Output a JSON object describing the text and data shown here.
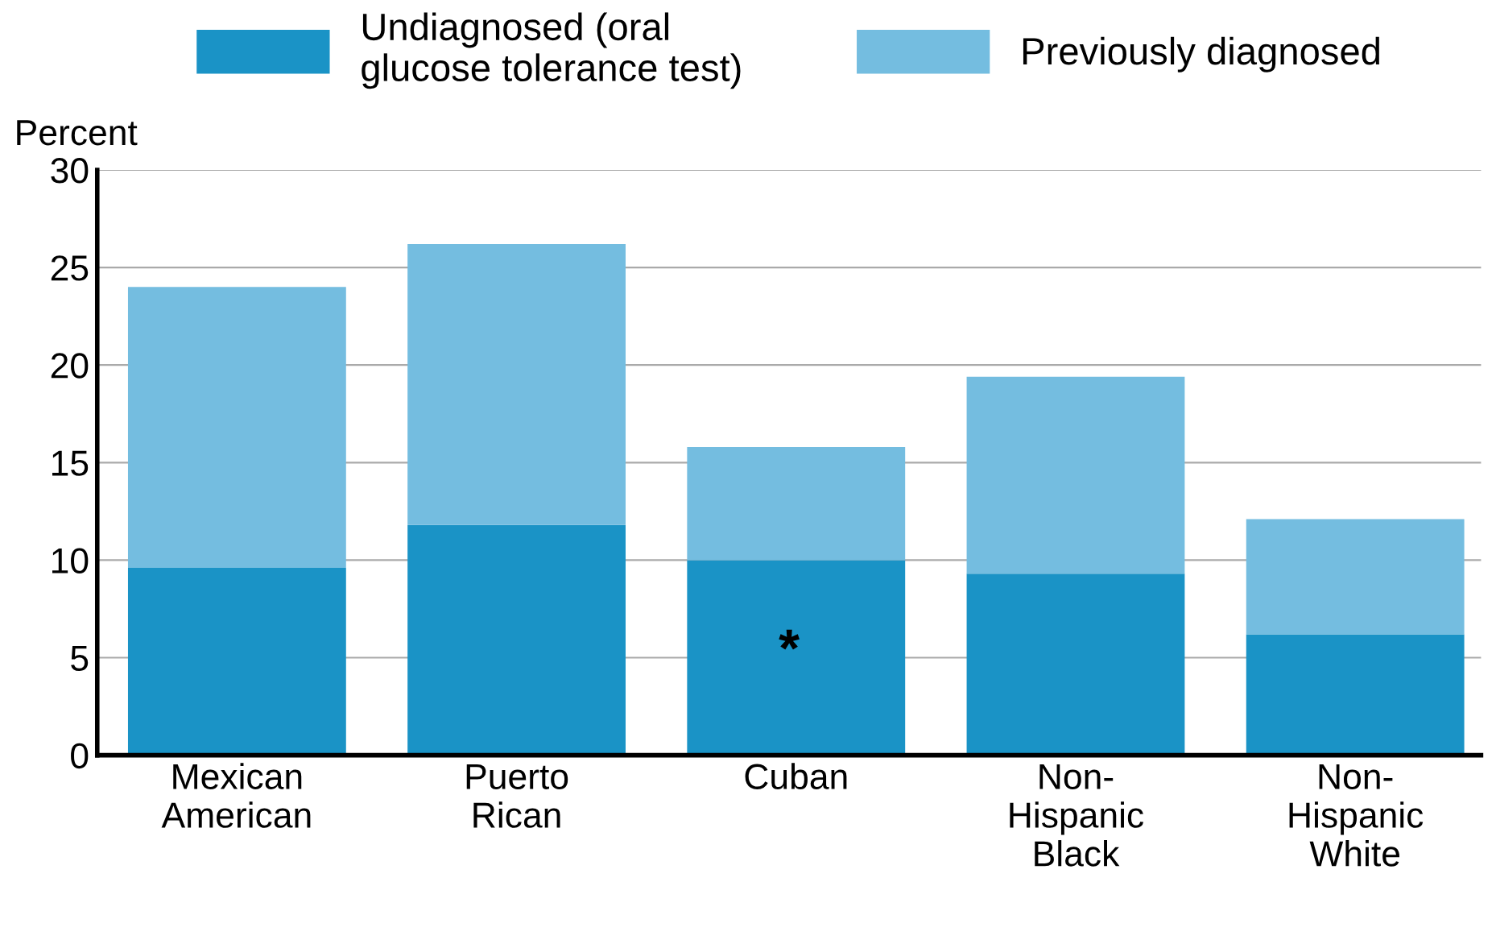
{
  "chart_data": {
    "type": "bar",
    "stacked": true,
    "ylabel": "Percent",
    "categories": [
      "Mexican\nAmerican",
      "Puerto\nRican",
      "Cuban",
      "Non-\nHispanic\nBlack",
      "Non-\nHispanic\nWhite"
    ],
    "series": [
      {
        "name": "Undiagnosed (oral\nglucose tolerance test)",
        "color": "#1a93c6",
        "values": [
          9.6,
          11.8,
          10.0,
          9.3,
          6.2
        ]
      },
      {
        "name": "Previously diagnosed",
        "color": "#74bde0",
        "values": [
          14.4,
          14.4,
          5.8,
          10.1,
          5.9
        ]
      }
    ],
    "ylim": [
      0,
      30
    ],
    "yticks": [
      0,
      5,
      10,
      15,
      20,
      25,
      30
    ],
    "grid": "y",
    "legend": "top",
    "annotations": [
      "*"
    ]
  }
}
